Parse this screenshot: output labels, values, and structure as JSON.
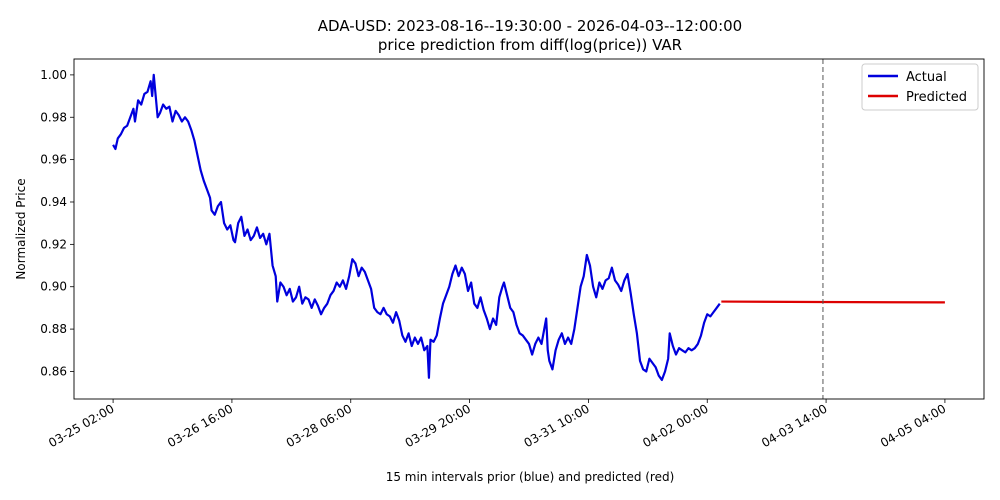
{
  "chart_data": {
    "type": "line",
    "title": "ADA-USD: 2023-08-16--19:30:00 - 2026-04-03--12:00:00",
    "subtitle": "price prediction from diff(log(price)) VAR",
    "xlabel": "15 min intervals prior (blue) and predicted (red)",
    "ylabel": "Normalized Price",
    "x_ticks": [
      "03-25 02:00",
      "03-26 16:00",
      "03-28 06:00",
      "03-29 20:00",
      "03-31 10:00",
      "04-02 00:00",
      "04-03 14:00",
      "04-05 04:00"
    ],
    "x_tick_positions": [
      0,
      152,
      304,
      456,
      608,
      760,
      912,
      1064
    ],
    "y_ticks": [
      0.86,
      0.88,
      0.9,
      0.92,
      0.94,
      0.96,
      0.98,
      1.0
    ],
    "xlim": [
      -50,
      1114
    ],
    "ylim": [
      0.847,
      1.0075
    ],
    "divider_x": 908,
    "legend_position": "top-right",
    "series": [
      {
        "name": "Actual",
        "color": "#0000dd",
        "points": [
          [
            0,
            0.967
          ],
          [
            3,
            0.965
          ],
          [
            6,
            0.97
          ],
          [
            10,
            0.972
          ],
          [
            14,
            0.975
          ],
          [
            18,
            0.976
          ],
          [
            22,
            0.98
          ],
          [
            26,
            0.984
          ],
          [
            28,
            0.978
          ],
          [
            32,
            0.988
          ],
          [
            36,
            0.986
          ],
          [
            40,
            0.991
          ],
          [
            44,
            0.992
          ],
          [
            48,
            0.997
          ],
          [
            50,
            0.99
          ],
          [
            52,
            1.0
          ],
          [
            54,
            0.992
          ],
          [
            57,
            0.98
          ],
          [
            60,
            0.982
          ],
          [
            64,
            0.986
          ],
          [
            68,
            0.984
          ],
          [
            72,
            0.985
          ],
          [
            76,
            0.978
          ],
          [
            80,
            0.983
          ],
          [
            84,
            0.981
          ],
          [
            88,
            0.978
          ],
          [
            92,
            0.98
          ],
          [
            96,
            0.978
          ],
          [
            100,
            0.974
          ],
          [
            104,
            0.969
          ],
          [
            108,
            0.962
          ],
          [
            112,
            0.955
          ],
          [
            116,
            0.95
          ],
          [
            120,
            0.946
          ],
          [
            124,
            0.942
          ],
          [
            126,
            0.936
          ],
          [
            130,
            0.934
          ],
          [
            134,
            0.938
          ],
          [
            138,
            0.94
          ],
          [
            142,
            0.93
          ],
          [
            146,
            0.927
          ],
          [
            150,
            0.929
          ],
          [
            154,
            0.922
          ],
          [
            156,
            0.921
          ],
          [
            160,
            0.93
          ],
          [
            164,
            0.933
          ],
          [
            168,
            0.924
          ],
          [
            172,
            0.927
          ],
          [
            176,
            0.922
          ],
          [
            180,
            0.924
          ],
          [
            184,
            0.928
          ],
          [
            188,
            0.923
          ],
          [
            192,
            0.925
          ],
          [
            196,
            0.92
          ],
          [
            200,
            0.925
          ],
          [
            204,
            0.91
          ],
          [
            208,
            0.905
          ],
          [
            210,
            0.893
          ],
          [
            214,
            0.902
          ],
          [
            218,
            0.9
          ],
          [
            222,
            0.896
          ],
          [
            226,
            0.899
          ],
          [
            230,
            0.893
          ],
          [
            234,
            0.895
          ],
          [
            238,
            0.9
          ],
          [
            242,
            0.892
          ],
          [
            246,
            0.895
          ],
          [
            250,
            0.894
          ],
          [
            254,
            0.89
          ],
          [
            258,
            0.894
          ],
          [
            262,
            0.891
          ],
          [
            266,
            0.887
          ],
          [
            270,
            0.89
          ],
          [
            274,
            0.892
          ],
          [
            278,
            0.896
          ],
          [
            282,
            0.898
          ],
          [
            286,
            0.902
          ],
          [
            290,
            0.9
          ],
          [
            294,
            0.903
          ],
          [
            298,
            0.899
          ],
          [
            302,
            0.905
          ],
          [
            306,
            0.913
          ],
          [
            310,
            0.911
          ],
          [
            314,
            0.905
          ],
          [
            318,
            0.909
          ],
          [
            322,
            0.907
          ],
          [
            326,
            0.903
          ],
          [
            330,
            0.899
          ],
          [
            334,
            0.89
          ],
          [
            338,
            0.888
          ],
          [
            342,
            0.887
          ],
          [
            346,
            0.89
          ],
          [
            350,
            0.887
          ],
          [
            354,
            0.886
          ],
          [
            358,
            0.883
          ],
          [
            362,
            0.888
          ],
          [
            366,
            0.884
          ],
          [
            370,
            0.877
          ],
          [
            374,
            0.874
          ],
          [
            378,
            0.878
          ],
          [
            382,
            0.872
          ],
          [
            386,
            0.876
          ],
          [
            390,
            0.873
          ],
          [
            394,
            0.876
          ],
          [
            398,
            0.87
          ],
          [
            402,
            0.872
          ],
          [
            404,
            0.857
          ],
          [
            406,
            0.875
          ],
          [
            410,
            0.874
          ],
          [
            414,
            0.877
          ],
          [
            418,
            0.885
          ],
          [
            422,
            0.892
          ],
          [
            426,
            0.896
          ],
          [
            430,
            0.9
          ],
          [
            434,
            0.906
          ],
          [
            438,
            0.91
          ],
          [
            442,
            0.905
          ],
          [
            446,
            0.909
          ],
          [
            450,
            0.906
          ],
          [
            454,
            0.898
          ],
          [
            458,
            0.902
          ],
          [
            462,
            0.892
          ],
          [
            466,
            0.89
          ],
          [
            470,
            0.895
          ],
          [
            474,
            0.889
          ],
          [
            478,
            0.885
          ],
          [
            482,
            0.88
          ],
          [
            486,
            0.885
          ],
          [
            490,
            0.882
          ],
          [
            494,
            0.895
          ],
          [
            498,
            0.9
          ],
          [
            500,
            0.902
          ],
          [
            504,
            0.896
          ],
          [
            508,
            0.89
          ],
          [
            512,
            0.888
          ],
          [
            516,
            0.882
          ],
          [
            520,
            0.878
          ],
          [
            524,
            0.877
          ],
          [
            528,
            0.875
          ],
          [
            532,
            0.873
          ],
          [
            536,
            0.868
          ],
          [
            540,
            0.873
          ],
          [
            544,
            0.876
          ],
          [
            548,
            0.873
          ],
          [
            552,
            0.881
          ],
          [
            554,
            0.885
          ],
          [
            556,
            0.87
          ],
          [
            558,
            0.865
          ],
          [
            562,
            0.861
          ],
          [
            566,
            0.87
          ],
          [
            570,
            0.875
          ],
          [
            574,
            0.878
          ],
          [
            578,
            0.873
          ],
          [
            582,
            0.876
          ],
          [
            586,
            0.873
          ],
          [
            590,
            0.88
          ],
          [
            594,
            0.89
          ],
          [
            598,
            0.9
          ],
          [
            602,
            0.905
          ],
          [
            606,
            0.915
          ],
          [
            610,
            0.91
          ],
          [
            614,
            0.9
          ],
          [
            618,
            0.895
          ],
          [
            622,
            0.902
          ],
          [
            626,
            0.899
          ],
          [
            630,
            0.903
          ],
          [
            634,
            0.904
          ],
          [
            638,
            0.909
          ],
          [
            642,
            0.903
          ],
          [
            646,
            0.901
          ],
          [
            650,
            0.898
          ],
          [
            654,
            0.903
          ],
          [
            658,
            0.906
          ],
          [
            662,
            0.897
          ],
          [
            666,
            0.887
          ],
          [
            670,
            0.878
          ],
          [
            674,
            0.865
          ],
          [
            678,
            0.861
          ],
          [
            682,
            0.86
          ],
          [
            686,
            0.866
          ],
          [
            690,
            0.864
          ],
          [
            694,
            0.862
          ],
          [
            698,
            0.858
          ],
          [
            702,
            0.856
          ],
          [
            706,
            0.86
          ],
          [
            710,
            0.866
          ],
          [
            712,
            0.878
          ],
          [
            716,
            0.872
          ],
          [
            720,
            0.868
          ],
          [
            724,
            0.871
          ],
          [
            728,
            0.87
          ],
          [
            732,
            0.869
          ],
          [
            736,
            0.871
          ],
          [
            740,
            0.87
          ],
          [
            744,
            0.871
          ],
          [
            748,
            0.873
          ],
          [
            752,
            0.877
          ],
          [
            756,
            0.883
          ],
          [
            760,
            0.887
          ],
          [
            764,
            0.886
          ],
          [
            768,
            0.888
          ],
          [
            772,
            0.89
          ],
          [
            776,
            0.892
          ]
        ]
      },
      {
        "name": "Predicted",
        "color": "#dd0000",
        "points": [
          [
            778,
            0.893
          ],
          [
            900,
            0.8928
          ],
          [
            1064,
            0.8926
          ]
        ]
      }
    ]
  }
}
